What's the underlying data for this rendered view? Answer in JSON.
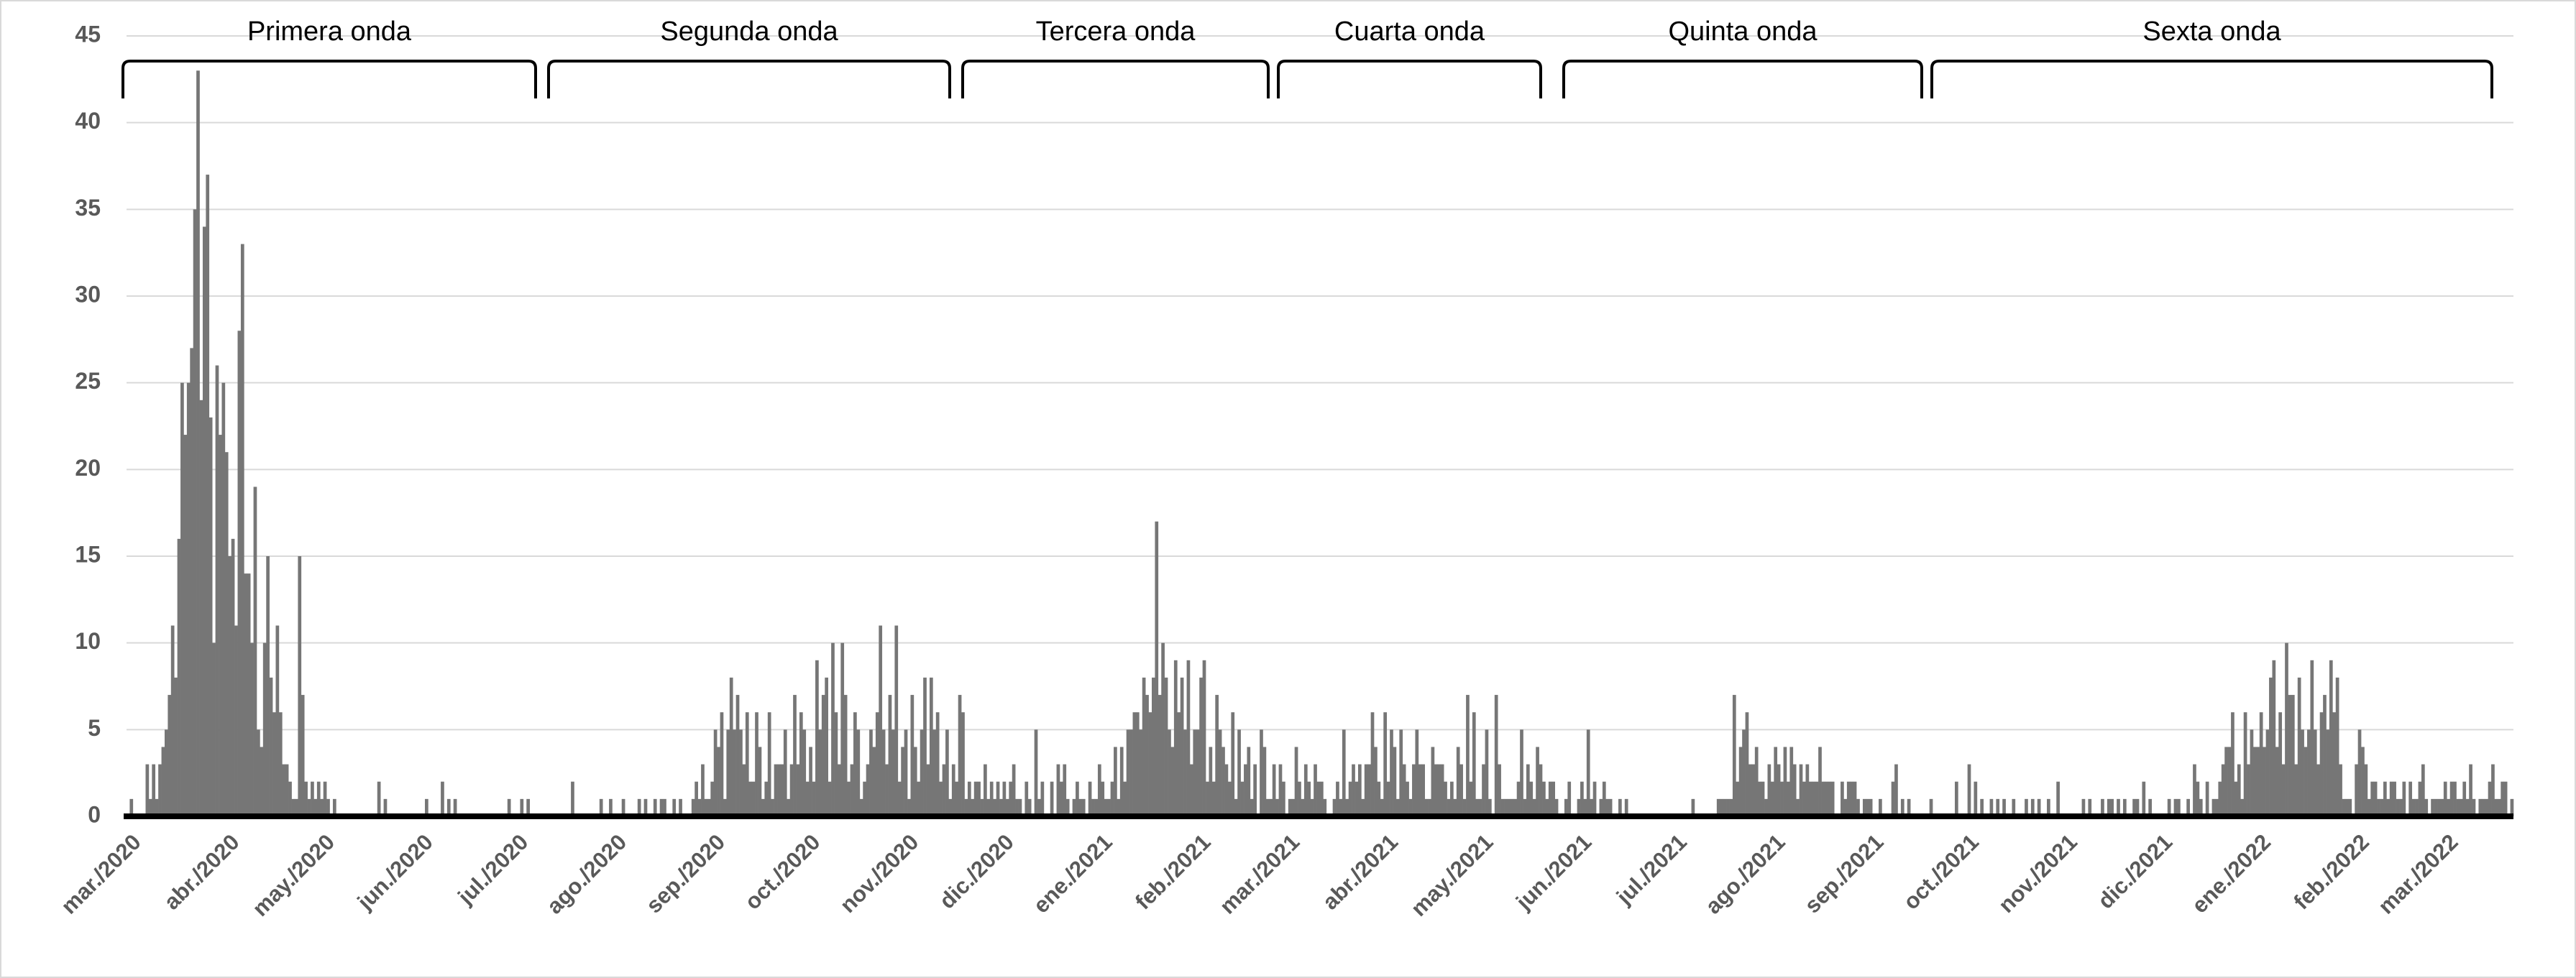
{
  "chart_data": {
    "type": "bar",
    "annotations": [
      "Primera onda",
      "Segunda onda",
      "Tercera onda",
      "Cuarta onda",
      "Quinta onda",
      "Sexta onda"
    ],
    "color": "#767676",
    "grid": true,
    "ylim": [
      0,
      45
    ],
    "yticks": [
      0,
      5,
      10,
      15,
      20,
      25,
      30,
      35,
      40,
      45
    ],
    "categories": [
      "mar./2020",
      null,
      null,
      null,
      null,
      null,
      null,
      null,
      null,
      null,
      null,
      null,
      null,
      null,
      null,
      null,
      null,
      null,
      null,
      null,
      null,
      null,
      null,
      null,
      null,
      null,
      null,
      null,
      null,
      null,
      null,
      "abr./2020",
      null,
      null,
      null,
      null,
      null,
      null,
      null,
      null,
      null,
      null,
      null,
      null,
      null,
      null,
      null,
      null,
      null,
      null,
      null,
      null,
      null,
      null,
      null,
      null,
      null,
      null,
      null,
      null,
      null,
      "may./2020",
      null,
      null,
      null,
      null,
      null,
      null,
      null,
      null,
      null,
      null,
      null,
      null,
      null,
      null,
      null,
      null,
      null,
      null,
      null,
      null,
      null,
      null,
      null,
      null,
      null,
      null,
      null,
      null,
      null,
      null,
      "jun./2020",
      null,
      null,
      null,
      null,
      null,
      null,
      null,
      null,
      null,
      null,
      null,
      null,
      null,
      null,
      null,
      null,
      null,
      null,
      null,
      null,
      null,
      null,
      null,
      null,
      null,
      null,
      null,
      null,
      null,
      "jul./2020",
      null,
      null,
      null,
      null,
      null,
      null,
      null,
      null,
      null,
      null,
      null,
      null,
      null,
      null,
      null,
      null,
      null,
      null,
      null,
      null,
      null,
      null,
      null,
      null,
      null,
      null,
      null,
      null,
      null,
      null,
      "ago./2020",
      null,
      null,
      null,
      null,
      null,
      null,
      null,
      null,
      null,
      null,
      null,
      null,
      null,
      null,
      null,
      null,
      null,
      null,
      null,
      null,
      null,
      null,
      null,
      null,
      null,
      null,
      null,
      null,
      null,
      null,
      "sep./2020",
      null,
      null,
      null,
      null,
      null,
      null,
      null,
      null,
      null,
      null,
      null,
      null,
      null,
      null,
      null,
      null,
      null,
      null,
      null,
      null,
      null,
      null,
      null,
      null,
      null,
      null,
      null,
      null,
      null,
      "oct./2020",
      null,
      null,
      null,
      null,
      null,
      null,
      null,
      null,
      null,
      null,
      null,
      null,
      null,
      null,
      null,
      null,
      null,
      null,
      null,
      null,
      null,
      null,
      null,
      null,
      null,
      null,
      null,
      null,
      null,
      null,
      "nov./2020",
      null,
      null,
      null,
      null,
      null,
      null,
      null,
      null,
      null,
      null,
      null,
      null,
      null,
      null,
      null,
      null,
      null,
      null,
      null,
      null,
      null,
      null,
      null,
      null,
      null,
      null,
      null,
      null,
      null,
      "dic./2020",
      null,
      null,
      null,
      null,
      null,
      null,
      null,
      null,
      null,
      null,
      null,
      null,
      null,
      null,
      null,
      null,
      null,
      null,
      null,
      null,
      null,
      null,
      null,
      null,
      null,
      null,
      null,
      null,
      null,
      null,
      "ene./2021",
      null,
      null,
      null,
      null,
      null,
      null,
      null,
      null,
      null,
      null,
      null,
      null,
      null,
      null,
      null,
      null,
      null,
      null,
      null,
      null,
      null,
      null,
      null,
      null,
      null,
      null,
      null,
      null,
      null,
      null,
      "feb./2021",
      null,
      null,
      null,
      null,
      null,
      null,
      null,
      null,
      null,
      null,
      null,
      null,
      null,
      null,
      null,
      null,
      null,
      null,
      null,
      null,
      null,
      null,
      null,
      null,
      null,
      null,
      null,
      "mar./2021",
      null,
      null,
      null,
      null,
      null,
      null,
      null,
      null,
      null,
      null,
      null,
      null,
      null,
      null,
      null,
      null,
      null,
      null,
      null,
      null,
      null,
      null,
      null,
      null,
      null,
      null,
      null,
      null,
      null,
      null,
      "abr./2021",
      null,
      null,
      null,
      null,
      null,
      null,
      null,
      null,
      null,
      null,
      null,
      null,
      null,
      null,
      null,
      null,
      null,
      null,
      null,
      null,
      null,
      null,
      null,
      null,
      null,
      null,
      null,
      null,
      null,
      "may./2021",
      null,
      null,
      null,
      null,
      null,
      null,
      null,
      null,
      null,
      null,
      null,
      null,
      null,
      null,
      null,
      null,
      null,
      null,
      null,
      null,
      null,
      null,
      null,
      null,
      null,
      null,
      null,
      null,
      null,
      null,
      "jun./2021",
      null,
      null,
      null,
      null,
      null,
      null,
      null,
      null,
      null,
      null,
      null,
      null,
      null,
      null,
      null,
      null,
      null,
      null,
      null,
      null,
      null,
      null,
      null,
      null,
      null,
      null,
      null,
      null,
      null,
      "jul./2021",
      null,
      null,
      null,
      null,
      null,
      null,
      null,
      null,
      null,
      null,
      null,
      null,
      null,
      null,
      null,
      null,
      null,
      null,
      null,
      null,
      null,
      null,
      null,
      null,
      null,
      null,
      null,
      null,
      null,
      null,
      "ago./2021",
      null,
      null,
      null,
      null,
      null,
      null,
      null,
      null,
      null,
      null,
      null,
      null,
      null,
      null,
      null,
      null,
      null,
      null,
      null,
      null,
      null,
      null,
      null,
      null,
      null,
      null,
      null,
      null,
      null,
      null,
      "sep./2021",
      null,
      null,
      null,
      null,
      null,
      null,
      null,
      null,
      null,
      null,
      null,
      null,
      null,
      null,
      null,
      null,
      null,
      null,
      null,
      null,
      null,
      null,
      null,
      null,
      null,
      null,
      null,
      null,
      null,
      "oct./2021",
      null,
      null,
      null,
      null,
      null,
      null,
      null,
      null,
      null,
      null,
      null,
      null,
      null,
      null,
      null,
      null,
      null,
      null,
      null,
      null,
      null,
      null,
      null,
      null,
      null,
      null,
      null,
      null,
      null,
      null,
      "nov./2021",
      null,
      null,
      null,
      null,
      null,
      null,
      null,
      null,
      null,
      null,
      null,
      null,
      null,
      null,
      null,
      null,
      null,
      null,
      null,
      null,
      null,
      null,
      null,
      null,
      null,
      null,
      null,
      null,
      null,
      "dic./2021",
      null,
      null,
      null,
      null,
      null,
      null,
      null,
      null,
      null,
      null,
      null,
      null,
      null,
      null,
      null,
      null,
      null,
      null,
      null,
      null,
      null,
      null,
      null,
      null,
      null,
      null,
      null,
      null,
      null,
      null,
      "ene./2022",
      null,
      null,
      null,
      null,
      null,
      null,
      null,
      null,
      null,
      null,
      null,
      null,
      null,
      null,
      null,
      null,
      null,
      null,
      null,
      null,
      null,
      null,
      null,
      null,
      null,
      null,
      null,
      null,
      null,
      null,
      "feb./2022",
      null,
      null,
      null,
      null,
      null,
      null,
      null,
      null,
      null,
      null,
      null,
      null,
      null,
      null,
      null,
      null,
      null,
      null,
      null,
      null,
      null,
      null,
      null,
      null,
      null,
      null,
      null,
      "mar./2022",
      null,
      null,
      null,
      null,
      null,
      null,
      null,
      null,
      null,
      null,
      null,
      null,
      null,
      null,
      null,
      null,
      null,
      null,
      null,
      null,
      null
    ],
    "values": [
      0,
      1,
      0,
      0,
      0,
      0,
      3,
      1,
      3,
      1,
      3,
      4,
      5,
      7,
      11,
      8,
      16,
      25,
      22,
      25,
      27,
      35,
      43,
      24,
      34,
      37,
      23,
      10,
      26,
      22,
      25,
      21,
      15,
      16,
      11,
      28,
      33,
      14,
      14,
      10,
      19,
      5,
      4,
      10,
      15,
      8,
      6,
      11,
      6,
      3,
      3,
      2,
      1,
      1,
      15,
      7,
      2,
      1,
      2,
      1,
      2,
      1,
      2,
      1,
      0,
      1,
      0,
      0,
      0,
      0,
      0,
      0,
      0,
      0,
      0,
      0,
      0,
      0,
      0,
      2,
      0,
      1,
      0,
      0,
      0,
      0,
      0,
      0,
      0,
      0,
      0,
      0,
      0,
      0,
      1,
      0,
      0,
      0,
      0,
      2,
      0,
      1,
      0,
      1,
      0,
      0,
      0,
      0,
      0,
      0,
      0,
      0,
      0,
      0,
      0,
      0,
      0,
      0,
      0,
      0,
      1,
      0,
      0,
      0,
      1,
      0,
      1,
      0,
      0,
      0,
      0,
      0,
      0,
      0,
      0,
      0,
      0,
      0,
      0,
      0,
      2,
      0,
      0,
      0,
      0,
      0,
      0,
      0,
      0,
      1,
      0,
      0,
      1,
      0,
      0,
      0,
      1,
      0,
      0,
      0,
      0,
      1,
      0,
      1,
      0,
      0,
      1,
      0,
      1,
      1,
      0,
      0,
      1,
      0,
      1,
      0,
      0,
      0,
      1,
      2,
      1,
      3,
      1,
      1,
      2,
      5,
      4,
      6,
      1,
      5,
      8,
      5,
      7,
      5,
      3,
      6,
      2,
      2,
      6,
      4,
      1,
      2,
      6,
      1,
      3,
      3,
      3,
      5,
      1,
      3,
      7,
      3,
      6,
      5,
      2,
      4,
      2,
      9,
      5,
      7,
      8,
      2,
      10,
      6,
      3,
      10,
      7,
      2,
      3,
      6,
      5,
      1,
      2,
      3,
      5,
      4,
      6,
      11,
      5,
      3,
      7,
      5,
      11,
      2,
      4,
      5,
      1,
      7,
      4,
      2,
      5,
      8,
      3,
      8,
      5,
      6,
      2,
      3,
      5,
      1,
      3,
      2,
      7,
      6,
      1,
      2,
      1,
      2,
      2,
      1,
      3,
      1,
      2,
      1,
      2,
      1,
      2,
      1,
      2,
      3,
      1,
      1,
      0,
      2,
      1,
      0,
      5,
      1,
      2,
      0,
      0,
      2,
      0,
      3,
      2,
      3,
      1,
      0,
      1,
      2,
      1,
      1,
      0,
      2,
      1,
      1,
      3,
      2,
      1,
      1,
      2,
      4,
      1,
      4,
      2,
      5,
      5,
      6,
      6,
      5,
      8,
      7,
      6,
      8,
      17,
      7,
      10,
      8,
      5,
      4,
      9,
      6,
      8,
      5,
      9,
      3,
      5,
      5,
      8,
      9,
      2,
      4,
      2,
      7,
      5,
      4,
      3,
      2,
      6,
      1,
      5,
      2,
      3,
      4,
      1,
      3,
      0,
      5,
      4,
      1,
      1,
      3,
      1,
      3,
      2,
      0,
      1,
      1,
      4,
      2,
      1,
      3,
      2,
      1,
      3,
      2,
      2,
      1,
      0,
      0,
      1,
      2,
      1,
      5,
      1,
      2,
      3,
      2,
      3,
      1,
      3,
      3,
      6,
      4,
      2,
      1,
      6,
      2,
      5,
      4,
      1,
      5,
      3,
      2,
      1,
      3,
      5,
      3,
      3,
      1,
      1,
      4,
      3,
      3,
      3,
      2,
      1,
      2,
      1,
      4,
      3,
      1,
      7,
      2,
      6,
      1,
      1,
      3,
      5,
      1,
      0,
      7,
      3,
      1,
      1,
      1,
      1,
      1,
      2,
      5,
      1,
      3,
      2,
      1,
      4,
      3,
      2,
      1,
      2,
      2,
      1,
      0,
      0,
      1,
      2,
      0,
      0,
      1,
      2,
      1,
      5,
      1,
      2,
      0,
      1,
      2,
      1,
      1,
      0,
      0,
      1,
      0,
      1,
      0,
      0,
      0,
      0,
      0,
      0,
      0,
      0,
      0,
      0,
      0,
      0,
      0,
      0,
      0,
      0,
      0,
      0,
      0,
      0,
      1,
      0,
      0,
      0,
      0,
      0,
      0,
      0,
      1,
      1,
      1,
      1,
      1,
      7,
      2,
      4,
      5,
      6,
      3,
      3,
      4,
      2,
      2,
      1,
      3,
      2,
      4,
      3,
      2,
      4,
      2,
      4,
      3,
      1,
      3,
      2,
      3,
      2,
      2,
      2,
      4,
      2,
      2,
      2,
      2,
      0,
      0,
      2,
      1,
      2,
      2,
      2,
      1,
      0,
      1,
      1,
      1,
      0,
      0,
      1,
      0,
      0,
      0,
      2,
      3,
      0,
      1,
      0,
      1,
      0,
      0,
      0,
      0,
      0,
      0,
      1,
      0,
      0,
      0,
      0,
      0,
      0,
      0,
      2,
      0,
      0,
      0,
      3,
      0,
      2,
      0,
      1,
      0,
      0,
      1,
      0,
      1,
      0,
      1,
      0,
      0,
      1,
      0,
      0,
      0,
      1,
      0,
      1,
      0,
      1,
      0,
      0,
      1,
      0,
      0,
      2,
      0,
      0,
      0,
      0,
      0,
      0,
      0,
      1,
      0,
      1,
      0,
      0,
      0,
      1,
      0,
      1,
      1,
      0,
      1,
      0,
      1,
      0,
      0,
      1,
      1,
      0,
      2,
      0,
      1,
      0,
      0,
      0,
      0,
      0,
      1,
      0,
      1,
      1,
      0,
      0,
      1,
      0,
      3,
      2,
      1,
      0,
      2,
      0,
      1,
      1,
      2,
      3,
      4,
      4,
      6,
      2,
      3,
      1,
      6,
      3,
      5,
      4,
      4,
      6,
      4,
      5,
      8,
      9,
      4,
      6,
      3,
      10,
      7,
      7,
      3,
      8,
      5,
      4,
      5,
      9,
      5,
      3,
      6,
      7,
      5,
      9,
      6,
      8,
      3,
      1,
      1,
      1,
      0,
      3,
      5,
      4,
      3,
      1,
      2,
      2,
      1,
      1,
      2,
      1,
      2,
      2,
      1,
      1,
      2,
      0,
      2,
      1,
      1,
      2,
      3,
      1,
      0,
      1,
      1,
      1,
      1,
      2,
      1,
      2,
      2,
      1,
      1,
      2,
      1,
      3,
      1,
      0,
      1,
      1,
      1,
      2,
      3,
      1,
      1,
      2,
      2,
      0,
      1
    ]
  }
}
